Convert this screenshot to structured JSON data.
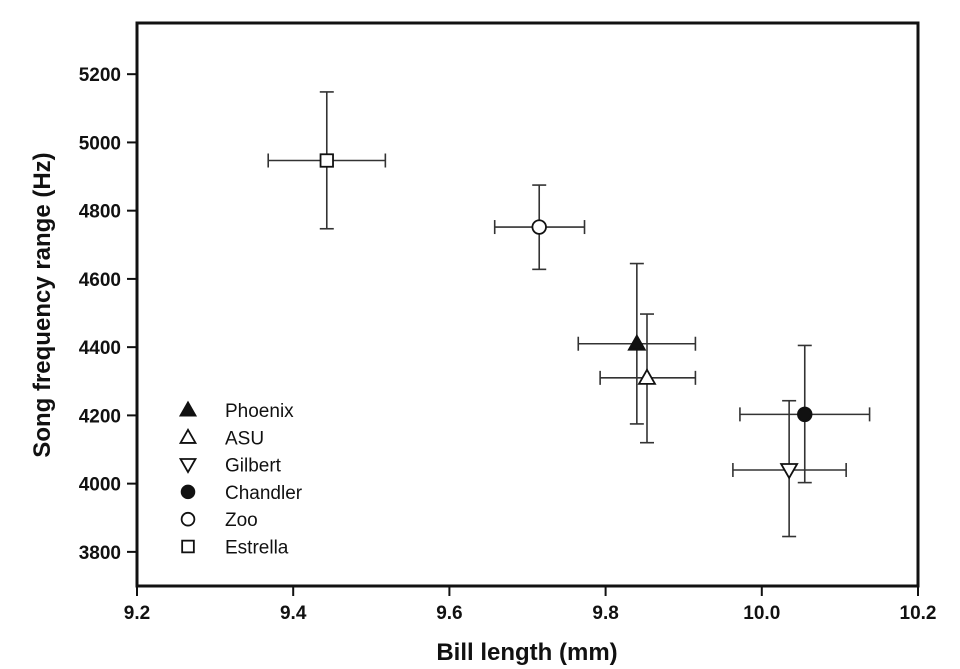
{
  "chart_data": {
    "type": "scatter",
    "title": "",
    "xlabel": "Bill length (mm)",
    "ylabel": "Song frequency range (Hz)",
    "xlim": [
      9.2,
      10.2
    ],
    "ylim": [
      3700,
      5350
    ],
    "xticks": [
      "9.2",
      "9.4",
      "9.6",
      "9.8",
      "10.0",
      "10.2"
    ],
    "yticks": [
      "3800",
      "4000",
      "4200",
      "4400",
      "4600",
      "4800",
      "5000",
      "5200"
    ],
    "grid": false,
    "legend_position": "bottom-left",
    "series": [
      {
        "name": "Phoenix",
        "marker": "triangle-up",
        "fill": "#111111",
        "x": 9.84,
        "y": 4410,
        "x_err": [
          9.765,
          9.915
        ],
        "y_err": [
          4175,
          4645
        ]
      },
      {
        "name": "ASU",
        "marker": "triangle-up",
        "fill": "#ffffff",
        "x": 9.853,
        "y": 4310,
        "x_err": [
          9.793,
          9.915
        ],
        "y_err": [
          4120,
          4497
        ]
      },
      {
        "name": "Gilbert",
        "marker": "triangle-down",
        "fill": "#ffffff",
        "x": 10.035,
        "y": 4040,
        "x_err": [
          9.963,
          10.108
        ],
        "y_err": [
          3845,
          4243
        ]
      },
      {
        "name": "Chandler",
        "marker": "circle",
        "fill": "#111111",
        "x": 10.055,
        "y": 4203,
        "x_err": [
          9.972,
          10.138
        ],
        "y_err": [
          4003,
          4405
        ]
      },
      {
        "name": "Zoo",
        "marker": "circle",
        "fill": "#ffffff",
        "x": 9.715,
        "y": 4752,
        "x_err": [
          9.658,
          9.773
        ],
        "y_err": [
          4628,
          4875
        ]
      },
      {
        "name": "Estrella",
        "marker": "square",
        "fill": "#ffffff",
        "x": 9.443,
        "y": 4947,
        "x_err": [
          9.368,
          9.518
        ],
        "y_err": [
          4747,
          5148
        ]
      }
    ]
  }
}
